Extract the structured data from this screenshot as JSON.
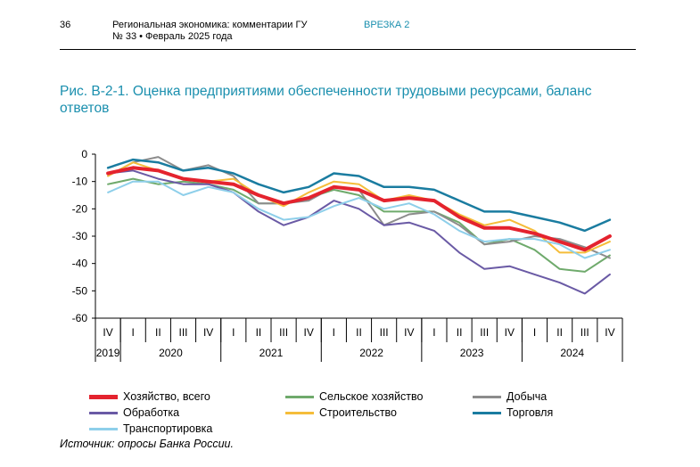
{
  "header": {
    "page_number": "36",
    "publication_line1": "Региональная экономика: комментарии ГУ",
    "publication_line2": "№ 33 • Февраль 2025 года",
    "inset_label": "ВРЕЗКА 2"
  },
  "figure_title": "Рис. В-2-1. Оценка предприятиями обеспеченности трудовыми ресурсами, баланс ответов",
  "source": "Источник: опросы Банка России.",
  "chart_data": {
    "type": "line",
    "title": "Рис. В-2-1. Оценка предприятиями обеспеченности трудовыми ресурсами, баланс ответов",
    "xlabel": "",
    "ylabel": "",
    "ylim": [
      -60,
      0
    ],
    "yticks": [
      0,
      -10,
      -20,
      -30,
      -40,
      -50,
      -60
    ],
    "grid": false,
    "legend_position": "bottom",
    "categories": [
      "IV 2019",
      "I 2020",
      "II 2020",
      "III 2020",
      "IV 2020",
      "I 2021",
      "II 2021",
      "III 2021",
      "IV 2021",
      "I 2022",
      "II 2022",
      "III 2022",
      "IV 2022",
      "I 2023",
      "II 2023",
      "III 2023",
      "IV 2023",
      "I 2024",
      "II 2024",
      "III 2024",
      "IV 2024"
    ],
    "quarter_labels": [
      "IV",
      "I",
      "II",
      "III",
      "IV",
      "I",
      "II",
      "III",
      "IV",
      "I",
      "II",
      "III",
      "IV",
      "I",
      "II",
      "III",
      "IV",
      "I",
      "II",
      "III",
      "IV"
    ],
    "year_labels": [
      {
        "label": "2019",
        "start": 0,
        "end": 0
      },
      {
        "label": "2020",
        "start": 1,
        "end": 4
      },
      {
        "label": "2021",
        "start": 5,
        "end": 8
      },
      {
        "label": "2022",
        "start": 9,
        "end": 12
      },
      {
        "label": "2023",
        "start": 13,
        "end": 16
      },
      {
        "label": "2024",
        "start": 17,
        "end": 20
      }
    ],
    "series": [
      {
        "name": "Хозяйство, всего",
        "color": "#e4232e",
        "width": 4,
        "values": [
          -7,
          -5,
          -6,
          -9,
          -10,
          -11,
          -15,
          -18,
          -16,
          -12,
          -13,
          -17,
          -16,
          -17,
          -23,
          -27,
          -27,
          -29,
          -32,
          -35,
          -30
        ]
      },
      {
        "name": "Сельское хозяйство",
        "color": "#6faa6c",
        "width": 2,
        "values": [
          -11,
          -9,
          -11,
          -10,
          -11,
          -13,
          -18,
          -18,
          -16,
          -13,
          -15,
          -21,
          -21,
          -21,
          -25,
          -33,
          -31,
          -35,
          -42,
          -43,
          -37
        ]
      },
      {
        "name": "Добыча",
        "color": "#8c8c8c",
        "width": 2,
        "values": [
          -8,
          -3,
          -1,
          -6,
          -4,
          -8,
          -18,
          -18,
          -17,
          -12,
          -13,
          -26,
          -22,
          -21,
          -26,
          -33,
          -32,
          -30,
          -31,
          -34,
          -38
        ]
      },
      {
        "name": "Обработка",
        "color": "#6a5aa5",
        "width": 2,
        "values": [
          -7,
          -6,
          -9,
          -11,
          -11,
          -14,
          -21,
          -26,
          -23,
          -17,
          -20,
          -26,
          -25,
          -28,
          -36,
          -42,
          -41,
          -44,
          -47,
          -51,
          -44
        ]
      },
      {
        "name": "Строительство",
        "color": "#f5bd3a",
        "width": 2,
        "values": [
          -8,
          -3,
          -6,
          -9,
          -10,
          -9,
          -15,
          -19,
          -14,
          -10,
          -11,
          -17,
          -15,
          -17,
          -22,
          -26,
          -24,
          -28,
          -36,
          -36,
          -32
        ]
      },
      {
        "name": "Торговля",
        "color": "#1a7ca0",
        "width": 2.5,
        "values": [
          -5,
          -2,
          -3,
          -6,
          -5,
          -7,
          -11,
          -14,
          -12,
          -7,
          -8,
          -12,
          -12,
          -13,
          -17,
          -21,
          -21,
          -23,
          -25,
          -28,
          -24
        ]
      },
      {
        "name": "Транспортировка",
        "color": "#8ecfea",
        "width": 2,
        "values": [
          -14,
          -10,
          -10,
          -15,
          -12,
          -14,
          -20,
          -24,
          -23,
          -19,
          -16,
          -20,
          -18,
          -22,
          -28,
          -32,
          -31,
          -31,
          -33,
          -38,
          -35
        ]
      }
    ]
  },
  "legend": {
    "items": [
      {
        "label": "Хозяйство, всего",
        "color": "#e4232e"
      },
      {
        "label": "Сельское хозяйство",
        "color": "#6faa6c"
      },
      {
        "label": "Добыча",
        "color": "#8c8c8c"
      },
      {
        "label": "Обработка",
        "color": "#6a5aa5"
      },
      {
        "label": "Строительство",
        "color": "#f5bd3a"
      },
      {
        "label": "Торговля",
        "color": "#1a7ca0"
      },
      {
        "label": "Транспортировка",
        "color": "#8ecfea"
      }
    ]
  }
}
